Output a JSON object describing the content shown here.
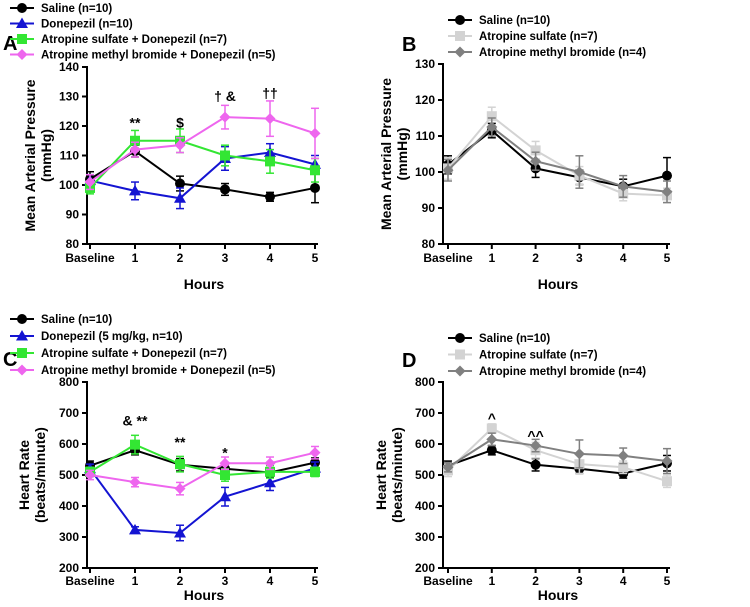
{
  "chart_data": [
    {
      "panel": "A",
      "type": "line",
      "categories": [
        "Baseline",
        "1",
        "2",
        "3",
        "4",
        "5"
      ],
      "xlabel": "Hours",
      "ylabel": [
        "Mean Arterial Pressure",
        "(mmHg)"
      ],
      "ylim": [
        80,
        140
      ],
      "yticks": [
        80,
        90,
        100,
        110,
        120,
        130,
        140
      ],
      "series": [
        {
          "name": "Saline (n=10)",
          "color": "#000000",
          "marker": "circle",
          "values": [
            102,
            111.5,
            100.5,
            98.5,
            96,
            99
          ],
          "errors": [
            2.5,
            2,
            2.5,
            2,
            1.5,
            5
          ]
        },
        {
          "name": "Donepezil (n=10)",
          "color": "#1414d2",
          "marker": "triangle",
          "values": [
            101.5,
            98,
            95.5,
            109,
            111,
            107
          ],
          "errors": [
            2,
            3,
            3.5,
            4,
            3,
            3
          ]
        },
        {
          "name": "Atropine sulfate + Donepezil (n=7)",
          "color": "#33e633",
          "marker": "square",
          "values": [
            99,
            115,
            115,
            110,
            108,
            105
          ],
          "errors": [
            2,
            3.5,
            4,
            3.5,
            4,
            4
          ]
        },
        {
          "name": "Atropine methyl bromide + Donepezil (n=5)",
          "color": "#ee66ee",
          "marker": "diamond",
          "values": [
            101,
            112,
            113.5,
            123,
            122.5,
            117.5
          ],
          "errors": [
            2.5,
            2.5,
            2.5,
            4,
            6,
            8.5
          ]
        }
      ],
      "annotations": [
        {
          "label": "**",
          "x": "1",
          "y": 119.5
        },
        {
          "label": "$",
          "x": "2",
          "y": 119.5
        },
        {
          "label": "† &",
          "x": "3",
          "y": 128.5
        },
        {
          "label": "††",
          "x": "4",
          "y": 129.5
        }
      ]
    },
    {
      "panel": "B",
      "type": "line",
      "categories": [
        "Baseline",
        "1",
        "2",
        "3",
        "4",
        "5"
      ],
      "xlabel": "Hours",
      "ylabel": [
        "Mean Arterial Pressure",
        "(mmHg)"
      ],
      "ylim": [
        80,
        130
      ],
      "yticks": [
        80,
        90,
        100,
        110,
        120,
        130
      ],
      "series": [
        {
          "name": "Saline (n=10)",
          "color": "#000000",
          "marker": "circle",
          "values": [
            102,
            111.5,
            101,
            98.5,
            96,
            99
          ],
          "errors": [
            2.5,
            2,
            2.5,
            2,
            2,
            5
          ]
        },
        {
          "name": "Atropine sulfate (n=7)",
          "color": "#d3d3d3",
          "marker": "square",
          "values": [
            101,
            115.5,
            106,
            99,
            94,
            93.5
          ],
          "errors": [
            3,
            2.5,
            2.5,
            2.5,
            2,
            2
          ]
        },
        {
          "name": "Atropine methyl bromide (n=4)",
          "color": "#808080",
          "marker": "diamond",
          "values": [
            100.5,
            112.5,
            103,
            100,
            96,
            94.5
          ],
          "errors": [
            3,
            2.5,
            2.5,
            4.5,
            3,
            3
          ]
        }
      ],
      "annotations": []
    },
    {
      "panel": "C",
      "type": "line",
      "categories": [
        "Baseline",
        "1",
        "2",
        "3",
        "4",
        "5"
      ],
      "xlabel": "Hours",
      "ylabel": [
        "Heart Rate",
        "(beats/minute)"
      ],
      "ylim": [
        200,
        800
      ],
      "yticks": [
        200,
        300,
        400,
        500,
        600,
        700,
        800
      ],
      "series": [
        {
          "name": "Saline (n=10)",
          "color": "#000000",
          "marker": "circle",
          "values": [
            530,
            580,
            533,
            520,
            508,
            540
          ],
          "errors": [
            15,
            15,
            20,
            15,
            15,
            15
          ]
        },
        {
          "name": "Donepezil (5 mg/kg, n=10)",
          "color": "#1414d2",
          "marker": "triangle",
          "values": [
            520,
            323,
            313,
            430,
            475,
            522
          ],
          "errors": [
            15,
            10,
            25,
            30,
            25,
            20
          ]
        },
        {
          "name": "Atropine sulfate + Donepezil (n=7)",
          "color": "#33e633",
          "marker": "square",
          "values": [
            510,
            598,
            535,
            500,
            510,
            510
          ],
          "errors": [
            15,
            30,
            25,
            20,
            20,
            15
          ]
        },
        {
          "name": "Atropine methyl bromide + Donepezil (n=5)",
          "color": "#ee66ee",
          "marker": "diamond",
          "values": [
            500,
            477,
            456,
            538,
            538,
            572
          ],
          "errors": [
            15,
            15,
            20,
            20,
            20,
            20
          ]
        }
      ],
      "annotations": [
        {
          "label": "& **",
          "x": "1",
          "y": 660
        },
        {
          "label": "**",
          "x": "2",
          "y": 590
        },
        {
          "label": "*",
          "x": "3",
          "y": 557
        }
      ]
    },
    {
      "panel": "D",
      "type": "line",
      "categories": [
        "Baseline",
        "1",
        "2",
        "3",
        "4",
        "5"
      ],
      "xlabel": "Hours",
      "ylabel": [
        "Heart Rate",
        "(beats/minute)"
      ],
      "ylim": [
        200,
        800
      ],
      "yticks": [
        200,
        300,
        400,
        500,
        600,
        700,
        800
      ],
      "series": [
        {
          "name": "Saline (n=10)",
          "color": "#000000",
          "marker": "circle",
          "values": [
            530,
            580,
            533,
            520,
            505,
            538
          ],
          "errors": [
            15,
            15,
            20,
            15,
            15,
            25
          ]
        },
        {
          "name": "Atropine sulfate (n=7)",
          "color": "#d3d3d3",
          "marker": "square",
          "values": [
            515,
            650,
            580,
            535,
            525,
            480
          ],
          "errors": [
            20,
            15,
            25,
            30,
            20,
            20
          ]
        },
        {
          "name": "Atropine methyl bromide (n=4)",
          "color": "#808080",
          "marker": "diamond",
          "values": [
            525,
            615,
            595,
            568,
            562,
            545
          ],
          "errors": [
            15,
            20,
            20,
            45,
            25,
            40
          ]
        }
      ],
      "annotations": [
        {
          "label": "^",
          "x": "1",
          "y": 668
        },
        {
          "label": "^^",
          "x": "2",
          "y": 612
        }
      ]
    }
  ]
}
